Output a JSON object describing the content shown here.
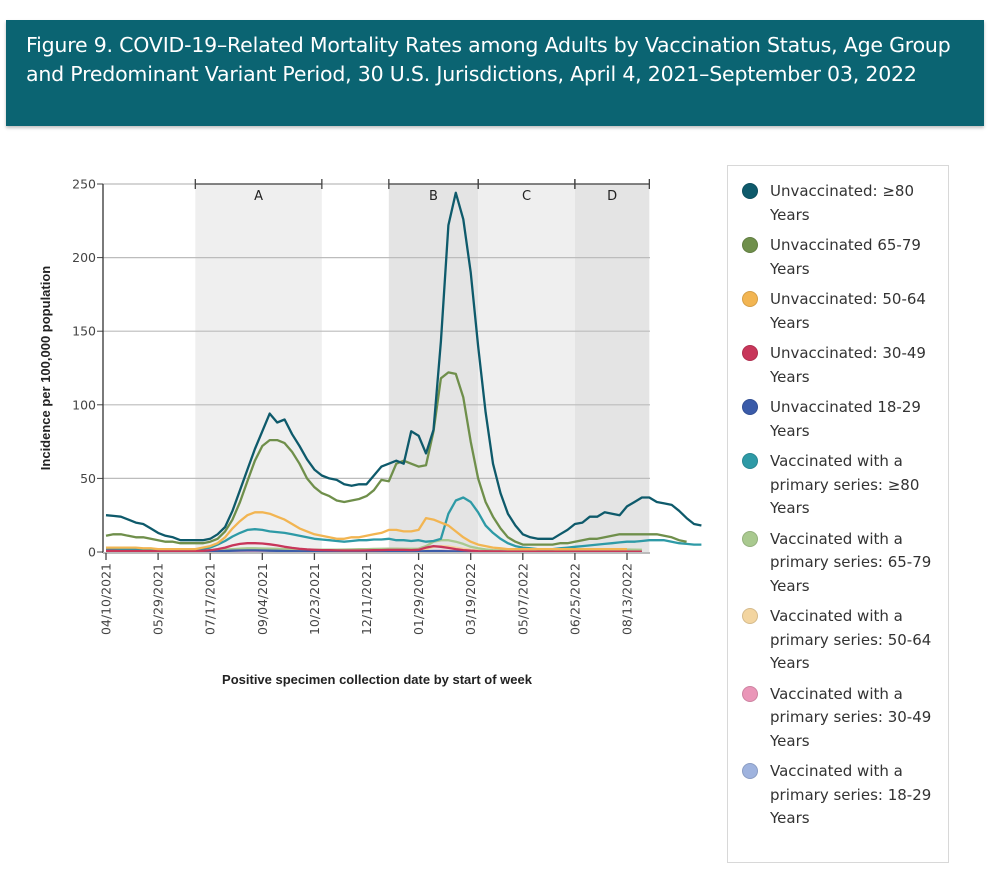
{
  "figure": {
    "title": "Figure 9. COVID-19–Related Mortality Rates among Adults by Vaccination Status, Age Group and Predominant Variant Period, 30 U.S. Jurisdictions, April 4, 2021–September 03, 2022"
  },
  "colors": {
    "title_bar": "#0b6472"
  },
  "chart_data": {
    "type": "line",
    "title": "Figure 9. COVID-19–Related Mortality Rates among Adults by Vaccination Status, Age Group and Predominant Variant Period, 30 U.S. Jurisdictions, April 4, 2021–September 03, 2022",
    "xlabel": "Positive specimen collection date by start of week",
    "ylabel": "Incidence per 100,000 population",
    "ylim": [
      0,
      250
    ],
    "yticks": [
      0,
      50,
      100,
      150,
      200,
      250
    ],
    "grid": true,
    "legend_position": "right",
    "x_start": "04/10/2021",
    "x_interval": "weekly",
    "xlim_weeks": [
      0,
      73
    ],
    "xtick_labels": [
      "04/10/2021",
      "05/29/2021",
      "07/17/2021",
      "09/04/2021",
      "10/23/2021",
      "12/11/2021",
      "01/29/2022",
      "03/19/2022",
      "05/07/2022",
      "06/25/2022",
      "08/13/2022"
    ],
    "xtick_weeks": [
      0,
      7,
      14,
      21,
      28,
      35,
      42,
      49,
      56,
      63,
      70
    ],
    "periods": [
      {
        "label": "A",
        "start_week": 12,
        "end_week": 29,
        "shade": "#efefef"
      },
      {
        "label": "B",
        "start_week": 38,
        "end_week": 50,
        "shade": "#e4e4e4"
      },
      {
        "label": "C",
        "start_week": 50,
        "end_week": 63,
        "shade": "#efefef"
      },
      {
        "label": "D",
        "start_week": 63,
        "end_week": 73,
        "shade": "#e4e4e4"
      }
    ],
    "series": [
      {
        "name": "Unvaccinated: ≥80 Years",
        "color": "#0e5a6b",
        "values": [
          25,
          24.5,
          24,
          22,
          20,
          19,
          16,
          13,
          11,
          10,
          8,
          8,
          8,
          8,
          9,
          12,
          17,
          28,
          42,
          56,
          70,
          82,
          94,
          88,
          90,
          80,
          72,
          63,
          56,
          52,
          50,
          49,
          46,
          45,
          46,
          46,
          52,
          58,
          60,
          62,
          60,
          82,
          79,
          67,
          83,
          143,
          222,
          244,
          226,
          190,
          140,
          95,
          60,
          40,
          26,
          18,
          12,
          10,
          9,
          9,
          9,
          12,
          15,
          19,
          20,
          24,
          24,
          27,
          26,
          25,
          31,
          34,
          37,
          37,
          34,
          33,
          32,
          28,
          23,
          19,
          18
        ]
      },
      {
        "name": "Unvaccinated 65-79 Years",
        "color": "#6f8f4b",
        "values": [
          11,
          12,
          12,
          11,
          10,
          10,
          9,
          8,
          7,
          7,
          6,
          6,
          6,
          6,
          7,
          9,
          14,
          22,
          34,
          48,
          62,
          72,
          76,
          76,
          74,
          68,
          60,
          50,
          44,
          40,
          38,
          35,
          34,
          35,
          36,
          38,
          42,
          49,
          48,
          60,
          62,
          60,
          58,
          59,
          82,
          118,
          122,
          121,
          105,
          75,
          50,
          34,
          24,
          16,
          10,
          7,
          5,
          5,
          5,
          5,
          5,
          6,
          6,
          7,
          8,
          9,
          9,
          10,
          11,
          12,
          12,
          12,
          12,
          12,
          12,
          11,
          10,
          8,
          7
        ]
      },
      {
        "name": "Unvaccinated: 50-64 Years",
        "color": "#f2b552",
        "values": [
          3,
          3,
          3,
          3,
          3,
          2.5,
          2.5,
          2,
          2,
          2,
          2,
          2,
          2,
          3,
          4,
          6,
          10,
          16,
          21,
          25,
          27,
          27,
          26,
          24,
          22,
          19,
          16,
          14,
          12,
          11,
          10,
          9,
          9,
          10,
          10,
          11,
          12,
          13,
          15,
          15,
          14,
          14,
          15,
          23,
          22,
          20,
          18,
          14,
          10,
          7,
          5,
          4,
          3,
          2.5,
          2,
          2,
          2,
          2,
          2,
          2,
          2,
          2,
          2,
          2,
          2,
          2,
          2,
          2,
          2,
          2,
          2
        ]
      },
      {
        "name": "Unvaccinated: 30-49 Years",
        "color": "#c8365a",
        "values": [
          0.8,
          0.8,
          0.7,
          0.7,
          0.7,
          0.6,
          0.6,
          0.5,
          0.5,
          0.5,
          0.5,
          0.5,
          0.6,
          0.8,
          1.2,
          2,
          3,
          4.5,
          5.5,
          6,
          6,
          5.8,
          5.2,
          4.5,
          3.5,
          2.8,
          2.2,
          1.8,
          1.5,
          1.3,
          1.2,
          1.1,
          1,
          1,
          1,
          1.1,
          1.2,
          1.3,
          1.4,
          1.4,
          1.4,
          1.3,
          1.5,
          3,
          4,
          3.5,
          2.8,
          2,
          1.3,
          0.9,
          0.6,
          0.5,
          0.4,
          0.4,
          0.3,
          0.3,
          0.3,
          0.3,
          0.3,
          0.3,
          0.3,
          0.3,
          0.3,
          0.3,
          0.3,
          0.3,
          0.3,
          0.3,
          0.3,
          0.3,
          0.3,
          0.3,
          0.3
        ]
      },
      {
        "name": "Unvaccinated 18-29 Years",
        "color": "#3a5ba9",
        "values": [
          0.2,
          0.2,
          0.2,
          0.2,
          0.2,
          0.2,
          0.2,
          0.2,
          0.2,
          0.2,
          0.2,
          0.2,
          0.2,
          0.3,
          0.4,
          0.5,
          0.7,
          0.9,
          1,
          1.1,
          1.1,
          1,
          0.9,
          0.8,
          0.7,
          0.6,
          0.5,
          0.4,
          0.3,
          0.3,
          0.3,
          0.3,
          0.3,
          0.3,
          0.3,
          0.3,
          0.3,
          0.3,
          0.3,
          0.3,
          0.3,
          0.3,
          0.4,
          0.6,
          0.7,
          0.6,
          0.5,
          0.4,
          0.3,
          0.2,
          0.2,
          0.1,
          0.1,
          0.1,
          0.1,
          0.1,
          0.1,
          0.1,
          0.1,
          0.1,
          0.1,
          0.1,
          0.1,
          0.1,
          0.1,
          0.1,
          0.1,
          0.1,
          0.1,
          0.1,
          0.1,
          0.1,
          0.1
        ]
      },
      {
        "name": "Vaccinated with a primary series: ≥80 Years",
        "color": "#2e9aa6",
        "values": [
          2,
          2,
          2,
          2,
          2,
          1.8,
          1.8,
          1.6,
          1.5,
          1.5,
          1.5,
          1.5,
          1.7,
          2.2,
          3,
          5,
          7.5,
          10.5,
          13,
          15,
          15.5,
          15,
          14,
          13.5,
          13,
          12,
          11,
          10,
          9,
          8.5,
          8,
          7.5,
          7,
          7.5,
          8,
          8,
          8.5,
          8.5,
          9,
          8,
          8,
          7.5,
          8,
          7,
          7.5,
          9,
          26,
          35,
          37,
          34,
          27,
          18,
          13,
          9,
          6,
          4,
          3,
          2.5,
          2,
          2,
          2,
          2.5,
          3,
          3.5,
          4,
          4.5,
          5,
          5.5,
          6,
          6.5,
          7,
          7,
          7.5,
          8,
          8,
          8,
          7,
          6,
          5.5,
          5,
          5
        ]
      },
      {
        "name": "Vaccinated with a primary series: 65-79 Years",
        "color": "#a9c98f",
        "values": [
          0.5,
          0.5,
          0.5,
          0.5,
          0.5,
          0.5,
          0.5,
          0.5,
          0.5,
          0.5,
          0.5,
          0.5,
          0.6,
          0.8,
          1,
          1.3,
          1.7,
          2,
          2.3,
          2.5,
          2.5,
          2.4,
          2.3,
          2.2,
          2,
          1.9,
          1.8,
          1.7,
          1.6,
          1.6,
          1.6,
          1.6,
          1.7,
          1.8,
          1.9,
          2,
          2.1,
          2.2,
          2.3,
          2.3,
          2.2,
          2.2,
          2.3,
          4,
          7,
          8,
          8,
          7,
          5.5,
          3.5,
          2.5,
          1.8,
          1.3,
          1,
          0.8,
          0.8,
          0.8,
          0.8,
          0.9,
          1,
          1.1,
          1.2,
          1.3,
          1.4,
          1.5,
          1.6,
          1.7,
          1.8,
          1.8,
          1.8,
          1.7,
          1.6,
          1.5
        ]
      },
      {
        "name": "Vaccinated with a primary series: 50-64 Years",
        "color": "#f3d5a0",
        "values": [
          0.3,
          0.3,
          0.3,
          0.3,
          0.3,
          0.3,
          0.3,
          0.3,
          0.3,
          0.3,
          0.3,
          0.3,
          0.3,
          0.4,
          0.5,
          0.7,
          0.9,
          1.1,
          1.2,
          1.3,
          1.3,
          1.3,
          1.2,
          1.1,
          1,
          0.9,
          0.8,
          0.8,
          0.8,
          0.8,
          0.8,
          0.8,
          0.8,
          0.8,
          0.9,
          0.9,
          1,
          1,
          1.1,
          1.1,
          1,
          1,
          1.1,
          2,
          3.5,
          4,
          3.8,
          3,
          2.2,
          1.5,
          1,
          0.7,
          0.5,
          0.4,
          0.4,
          0.4,
          0.4,
          0.4,
          0.4,
          0.4,
          0.5,
          0.5,
          0.5,
          0.5,
          0.5,
          0.5,
          0.5,
          0.5,
          0.5,
          0.5,
          0.5,
          0.5,
          0.5
        ]
      },
      {
        "name": "Vaccinated with a primary series: 30-49 Years",
        "color": "#ea96b8",
        "values": [
          0.1,
          0.1,
          0.1,
          0.1,
          0.1,
          0.1,
          0.1,
          0.1,
          0.1,
          0.1,
          0.1,
          0.1,
          0.1,
          0.1,
          0.2,
          0.2,
          0.3,
          0.4,
          0.4,
          0.5,
          0.5,
          0.5,
          0.4,
          0.4,
          0.3,
          0.3,
          0.3,
          0.2,
          0.2,
          0.2,
          0.2,
          0.2,
          0.2,
          0.2,
          0.2,
          0.2,
          0.2,
          0.2,
          0.2,
          0.2,
          0.2,
          0.2,
          0.2,
          0.4,
          0.7,
          0.8,
          0.7,
          0.6,
          0.4,
          0.3,
          0.2,
          0.2,
          0.1,
          0.1,
          0.1,
          0.1,
          0.1,
          0.1,
          0.1,
          0.1,
          0.1,
          0.1,
          0.1,
          0.1,
          0.1,
          0.1,
          0.1,
          0.1,
          0.1,
          0.1,
          0.1,
          0.1,
          0.1
        ]
      },
      {
        "name": "Vaccinated with a primary series: 18-29 Years",
        "color": "#9fb3de",
        "values": [
          0,
          0,
          0,
          0,
          0,
          0,
          0,
          0,
          0,
          0,
          0,
          0,
          0,
          0,
          0,
          0.1,
          0.1,
          0.1,
          0.1,
          0.1,
          0.1,
          0.1,
          0.1,
          0.1,
          0.1,
          0.1,
          0.1,
          0.1,
          0.1,
          0.1,
          0.1,
          0.1,
          0.1,
          0.1,
          0.1,
          0.1,
          0.1,
          0.1,
          0.1,
          0.1,
          0.1,
          0.1,
          0.1,
          0.1,
          0.2,
          0.2,
          0.2,
          0.1,
          0.1,
          0.1,
          0.1,
          0,
          0,
          0,
          0,
          0,
          0,
          0,
          0,
          0,
          0,
          0,
          0,
          0,
          0,
          0,
          0,
          0,
          0,
          0,
          0,
          0,
          0
        ]
      }
    ]
  },
  "legend": {
    "items": [
      {
        "label": "Unvaccinated: ≥80 Years",
        "color": "#0e5a6b"
      },
      {
        "label": "Unvaccinated 65-79 Years",
        "color": "#6f8f4b"
      },
      {
        "label": "Unvaccinated: 50-64 Years",
        "color": "#f2b552"
      },
      {
        "label": "Unvaccinated: 30-49 Years",
        "color": "#c8365a"
      },
      {
        "label": "Unvaccinated 18-29 Years",
        "color": "#3a5ba9"
      },
      {
        "label": "Vaccinated with a primary series: ≥80 Years",
        "color": "#2e9aa6"
      },
      {
        "label": "Vaccinated with a primary series: 65-79 Years",
        "color": "#a9c98f"
      },
      {
        "label": "Vaccinated with a primary series: 50-64 Years",
        "color": "#f3d5a0"
      },
      {
        "label": "Vaccinated with a primary series: 30-49 Years",
        "color": "#ea96b8"
      },
      {
        "label": "Vaccinated with a primary series: 18-29 Years",
        "color": "#9fb3de"
      }
    ]
  }
}
